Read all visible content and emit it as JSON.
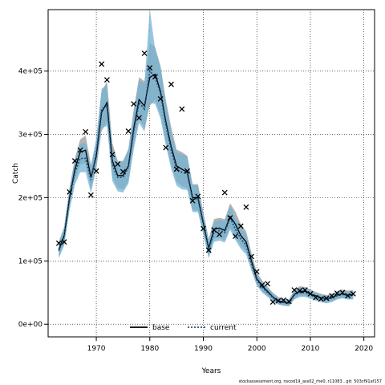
{
  "chart_data": {
    "type": "line",
    "title": "",
    "xlabel": "Years",
    "ylabel": "Catch",
    "xlim": [
      1961,
      2022
    ],
    "ylim": [
      -20000,
      497000
    ],
    "grid": true,
    "legend_position": "bottom-center",
    "x_ticks": [
      1970,
      1980,
      1990,
      2000,
      2010,
      2020
    ],
    "x_tick_labels": [
      "1970",
      "1980",
      "1990",
      "2000",
      "2010",
      "2020"
    ],
    "y_ticks": [
      0,
      100000,
      200000,
      300000,
      400000
    ],
    "y_tick_labels": [
      "0e+00",
      "1e+05",
      "2e+05",
      "3e+05",
      "4e+05"
    ],
    "footnote": "stockassessment.org, nscod19_ass02_rhe0, r11083 , git: 503cf91af157",
    "colors": {
      "base_band": "#999999",
      "current_band": "#74b3d4",
      "base_line": "#000000",
      "current_line": "#1f4e79",
      "observed": "#000000"
    },
    "series": [
      {
        "name": "base",
        "style": "solid",
        "x": [
          1963,
          1964,
          1965,
          1966,
          1967,
          1968,
          1969,
          1970,
          1971,
          1972,
          1973,
          1974,
          1975,
          1976,
          1977,
          1978,
          1979,
          1980,
          1981,
          1982,
          1983,
          1984,
          1985,
          1986,
          1987,
          1988,
          1989,
          1990,
          1991,
          1992,
          1993,
          1994,
          1995,
          1996,
          1997,
          1998,
          1999,
          2000,
          2001,
          2002,
          2003,
          2004,
          2005,
          2006,
          2007,
          2008,
          2009,
          2010,
          2011,
          2012,
          2013,
          2014,
          2015,
          2016,
          2017,
          2018
        ],
        "values": [
          118000,
          140000,
          200000,
          245000,
          272000,
          275000,
          232000,
          265000,
          335000,
          350000,
          258000,
          235000,
          235000,
          250000,
          310000,
          355000,
          345000,
          390000,
          395000,
          368000,
          320000,
          280000,
          250000,
          245000,
          240000,
          200000,
          200000,
          160000,
          120000,
          150000,
          152000,
          148000,
          170000,
          158000,
          140000,
          130000,
          100000,
          72000,
          60000,
          52000,
          43000,
          37000,
          35000,
          34000,
          47000,
          52000,
          52000,
          48000,
          45000,
          42000,
          40000,
          42000,
          46000,
          48000,
          46000,
          47000
        ],
        "lower": [
          108000,
          128000,
          185000,
          228000,
          252000,
          255000,
          213000,
          245000,
          305000,
          320000,
          232000,
          215000,
          213000,
          225000,
          283000,
          325000,
          310000,
          345000,
          355000,
          330000,
          288000,
          250000,
          225000,
          218000,
          215000,
          180000,
          180000,
          144000,
          106000,
          135000,
          137000,
          132000,
          152000,
          140000,
          124000,
          115000,
          88000,
          62000,
          52000,
          45000,
          37000,
          32000,
          30000,
          29000,
          40000,
          45000,
          45000,
          42000,
          39000,
          36000,
          34000,
          36000,
          40000,
          42000,
          40000,
          40000
        ],
        "upper": [
          130000,
          154000,
          216000,
          262000,
          292000,
          298000,
          252000,
          287000,
          367000,
          384000,
          286000,
          258000,
          258000,
          277000,
          340000,
          390000,
          384000,
          444000,
          438000,
          408000,
          354000,
          311000,
          276000,
          272000,
          266000,
          221000,
          221000,
          177000,
          135000,
          166000,
          168000,
          166000,
          191000,
          178000,
          158000,
          147000,
          113000,
          82000,
          69000,
          59000,
          50000,
          43000,
          40000,
          39000,
          54000,
          60000,
          59000,
          55000,
          51000,
          48000,
          46000,
          48000,
          52000,
          55000,
          53000,
          54000
        ]
      },
      {
        "name": "current",
        "style": "dotted",
        "x": [
          1963,
          1964,
          1965,
          1966,
          1967,
          1968,
          1969,
          1970,
          1971,
          1972,
          1973,
          1974,
          1975,
          1976,
          1977,
          1978,
          1979,
          1980,
          1981,
          1982,
          1983,
          1984,
          1985,
          1986,
          1987,
          1988,
          1989,
          1990,
          1991,
          1992,
          1993,
          1994,
          1995,
          1996,
          1997,
          1998,
          1999,
          2000,
          2001,
          2002,
          2003,
          2004,
          2005,
          2006,
          2007,
          2008,
          2009,
          2010,
          2011,
          2012,
          2013,
          2014,
          2015,
          2016,
          2017,
          2018
        ],
        "values": [
          116000,
          138000,
          197000,
          240000,
          262000,
          262000,
          228000,
          270000,
          340000,
          345000,
          252000,
          232000,
          232000,
          248000,
          305000,
          350000,
          340000,
          400000,
          390000,
          365000,
          315000,
          275000,
          245000,
          240000,
          238000,
          198000,
          198000,
          158000,
          118000,
          145000,
          148000,
          145000,
          168000,
          150000,
          135000,
          125000,
          95000,
          70000,
          58000,
          50000,
          42000,
          36000,
          34000,
          33000,
          46000,
          50000,
          50000,
          47000,
          43000,
          41000,
          39000,
          41000,
          45000,
          47000,
          45000,
          46000
        ],
        "lower": [
          104000,
          124000,
          180000,
          220000,
          240000,
          240000,
          207000,
          247000,
          310000,
          313000,
          226000,
          210000,
          208000,
          222000,
          276000,
          318000,
          304000,
          350000,
          348000,
          325000,
          282000,
          245000,
          219000,
          213000,
          212000,
          177000,
          177000,
          141000,
          104000,
          130000,
          132000,
          129000,
          149000,
          133000,
          119000,
          110000,
          84000,
          61000,
          50000,
          43000,
          36000,
          31000,
          29000,
          28000,
          39000,
          43000,
          43000,
          41000,
          37000,
          35000,
          33000,
          35000,
          39000,
          41000,
          39000,
          39000
        ],
        "upper": [
          130000,
          153000,
          215000,
          260000,
          285000,
          286000,
          249000,
          294000,
          372000,
          378000,
          279000,
          255000,
          257000,
          276000,
          337000,
          385000,
          380000,
          498000,
          434000,
          407000,
          350000,
          305000,
          272000,
          268000,
          265000,
          220000,
          220000,
          176000,
          133000,
          161000,
          165000,
          162000,
          188000,
          168000,
          152000,
          141000,
          108000,
          80000,
          67000,
          58000,
          49000,
          42000,
          39000,
          38000,
          53000,
          58000,
          57000,
          54000,
          49000,
          47000,
          45000,
          47000,
          51000,
          53000,
          51000,
          53000
        ]
      }
    ],
    "observed": {
      "name": "observed",
      "x": [
        1963,
        1964,
        1965,
        1966,
        1967,
        1968,
        1969,
        1970,
        1971,
        1972,
        1973,
        1974,
        1975,
        1976,
        1977,
        1978,
        1979,
        1980,
        1981,
        1982,
        1983,
        1984,
        1985,
        1986,
        1987,
        1988,
        1989,
        1990,
        1991,
        1992,
        1993,
        1994,
        1995,
        1996,
        1997,
        1998,
        1999,
        2000,
        2001,
        2002,
        2003,
        2004,
        2005,
        2006,
        2007,
        2008,
        2009,
        2010,
        2011,
        2012,
        2013,
        2014,
        2015,
        2016,
        2017,
        2018
      ],
      "values": [
        128000,
        130000,
        209000,
        258000,
        275000,
        304000,
        204000,
        242000,
        411000,
        386000,
        268000,
        253000,
        241000,
        305000,
        348000,
        326000,
        428000,
        405000,
        391000,
        356000,
        279000,
        379000,
        245000,
        340000,
        242000,
        195000,
        202000,
        151000,
        117000,
        149000,
        142000,
        208000,
        168000,
        139000,
        155000,
        185000,
        107000,
        83000,
        62000,
        64000,
        35000,
        37000,
        38000,
        36000,
        54000,
        53000,
        54000,
        48000,
        42000,
        40000,
        41000,
        45000,
        49000,
        50000,
        45000,
        48000
      ]
    }
  }
}
